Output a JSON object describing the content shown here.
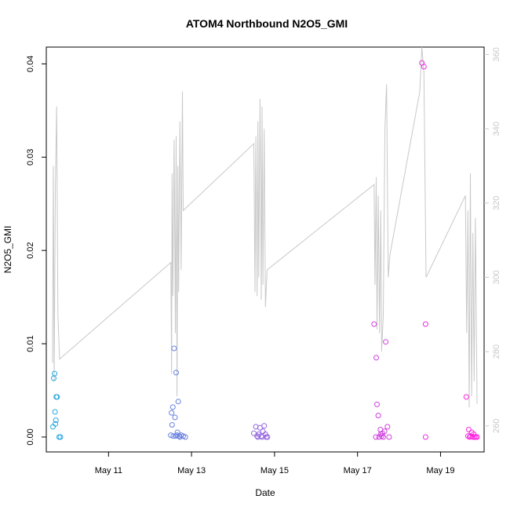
{
  "chart_data": {
    "type": "scatter",
    "title": "ATOM4 Northbound N2O5_GMI",
    "xlabel": "Date",
    "ylabel": "N2O5_GMI",
    "x_ticks": [
      "May 11",
      "May 13",
      "May 15",
      "May 17",
      "May 19"
    ],
    "x_tick_days": [
      11,
      13,
      15,
      17,
      19
    ],
    "xlim": [
      9.5,
      20.05
    ],
    "ylim": [
      -0.0016,
      0.0418
    ],
    "y_ticks": [
      "0.00",
      "0.01",
      "0.02",
      "0.03",
      "0.04"
    ],
    "y_tick_values": [
      0,
      0.01,
      0.02,
      0.03,
      0.04
    ],
    "right_axis": {
      "ylim": [
        253,
        362
      ],
      "ticks": [
        "260",
        "280",
        "300",
        "320",
        "340",
        "360"
      ],
      "tick_values": [
        260,
        280,
        300,
        320,
        340,
        360
      ],
      "color": "#c8c8c8"
    },
    "series": [
      {
        "type": "points",
        "color_start": "#29a8e0",
        "color_end": "#ff22dd",
        "points": [
          [
            9.66,
            0.0011
          ],
          [
            9.68,
            0.0063
          ],
          [
            9.7,
            0.0068
          ],
          [
            9.71,
            0.0027
          ],
          [
            9.72,
            0.0014
          ],
          [
            9.73,
            0.0018
          ],
          [
            9.74,
            0.0043
          ],
          [
            9.76,
            0.0043
          ],
          [
            9.81,
            0.0
          ],
          [
            9.84,
            0.0
          ],
          [
            12.5,
            0.0002
          ],
          [
            12.52,
            0.0026
          ],
          [
            12.53,
            0.0013
          ],
          [
            12.55,
            0.0032
          ],
          [
            12.56,
            0.0001
          ],
          [
            12.58,
            0.0095
          ],
          [
            12.6,
            0.0021
          ],
          [
            12.63,
            0.0069
          ],
          [
            12.65,
            0.0002
          ],
          [
            12.68,
            0.0038
          ],
          [
            12.66,
            0.0005
          ],
          [
            12.7,
            0.0001
          ],
          [
            12.75,
            0.0002
          ],
          [
            12.8,
            0.0001
          ],
          [
            12.85,
            0.0
          ],
          [
            12.72,
            0.0
          ],
          [
            12.62,
            0.0001
          ],
          [
            14.5,
            0.0004
          ],
          [
            14.55,
            0.0011
          ],
          [
            14.58,
            0.0001
          ],
          [
            14.6,
            0.0
          ],
          [
            14.62,
            0.0003
          ],
          [
            14.65,
            0.001
          ],
          [
            14.68,
            0.0001
          ],
          [
            14.7,
            0.0
          ],
          [
            14.72,
            0.0006
          ],
          [
            14.75,
            0.0012
          ],
          [
            14.78,
            0.0003
          ],
          [
            14.8,
            0.0
          ],
          [
            14.83,
            0.0
          ],
          [
            17.4,
            0.0121
          ],
          [
            17.45,
            0.0085
          ],
          [
            17.47,
            0.0035
          ],
          [
            17.5,
            0.0023
          ],
          [
            17.44,
            0.0
          ],
          [
            17.55,
            0.0008
          ],
          [
            17.58,
            0.0001
          ],
          [
            17.6,
            0.0004
          ],
          [
            17.62,
            0.0
          ],
          [
            17.65,
            0.0006
          ],
          [
            17.68,
            0.0102
          ],
          [
            17.72,
            0.0011
          ],
          [
            17.76,
            0.0
          ],
          [
            17.52,
            0.0
          ],
          [
            17.56,
            0.0003
          ],
          [
            18.55,
            0.0401
          ],
          [
            18.6,
            0.0397
          ],
          [
            18.64,
            0.0121
          ],
          [
            18.64,
            0.0
          ],
          [
            19.62,
            0.0043
          ],
          [
            19.68,
            0.0008
          ],
          [
            19.72,
            0.0001
          ],
          [
            19.75,
            0.0005
          ],
          [
            19.78,
            0.0
          ],
          [
            19.8,
            0.0003
          ],
          [
            19.82,
            0.0
          ],
          [
            19.85,
            0.0
          ],
          [
            19.7,
            0.0
          ],
          [
            19.88,
            0.0
          ],
          [
            19.66,
            0.0001
          ]
        ]
      },
      {
        "type": "line",
        "axis": "right",
        "color": "#c8c8c8",
        "points": [
          [
            9.65,
            277
          ],
          [
            9.67,
            330
          ],
          [
            9.69,
            272
          ],
          [
            9.72,
            325
          ],
          [
            9.75,
            346
          ],
          [
            9.78,
            290
          ],
          [
            9.82,
            278
          ],
          [
            12.5,
            304
          ],
          [
            12.52,
            274
          ],
          [
            12.53,
            328
          ],
          [
            12.55,
            295
          ],
          [
            12.58,
            337
          ],
          [
            12.61,
            285
          ],
          [
            12.63,
            338
          ],
          [
            12.65,
            268
          ],
          [
            12.67,
            330
          ],
          [
            12.69,
            296
          ],
          [
            12.72,
            342
          ],
          [
            12.75,
            302
          ],
          [
            12.78,
            350
          ],
          [
            12.8,
            318
          ],
          [
            14.5,
            336
          ],
          [
            14.53,
            296
          ],
          [
            14.55,
            338
          ],
          [
            14.58,
            295
          ],
          [
            14.6,
            342
          ],
          [
            14.62,
            300
          ],
          [
            14.65,
            348
          ],
          [
            14.68,
            294
          ],
          [
            14.7,
            346
          ],
          [
            14.72,
            298
          ],
          [
            14.75,
            340
          ],
          [
            14.78,
            292
          ],
          [
            14.82,
            302
          ],
          [
            17.4,
            325
          ],
          [
            17.42,
            298
          ],
          [
            17.45,
            327
          ],
          [
            17.47,
            286
          ],
          [
            17.5,
            322
          ],
          [
            17.53,
            285
          ],
          [
            17.56,
            318
          ],
          [
            17.58,
            280
          ],
          [
            17.62,
            290
          ],
          [
            17.66,
            340
          ],
          [
            17.7,
            352
          ],
          [
            17.74,
            300
          ],
          [
            17.78,
            306
          ],
          [
            18.5,
            350
          ],
          [
            18.55,
            362
          ],
          [
            18.6,
            355
          ],
          [
            18.65,
            300
          ],
          [
            19.6,
            322
          ],
          [
            19.63,
            285
          ],
          [
            19.66,
            318
          ],
          [
            19.69,
            265
          ],
          [
            19.72,
            328
          ],
          [
            19.75,
            268
          ],
          [
            19.78,
            312
          ],
          [
            19.81,
            272
          ],
          [
            19.84,
            316
          ],
          [
            19.88,
            266
          ]
        ]
      }
    ]
  }
}
